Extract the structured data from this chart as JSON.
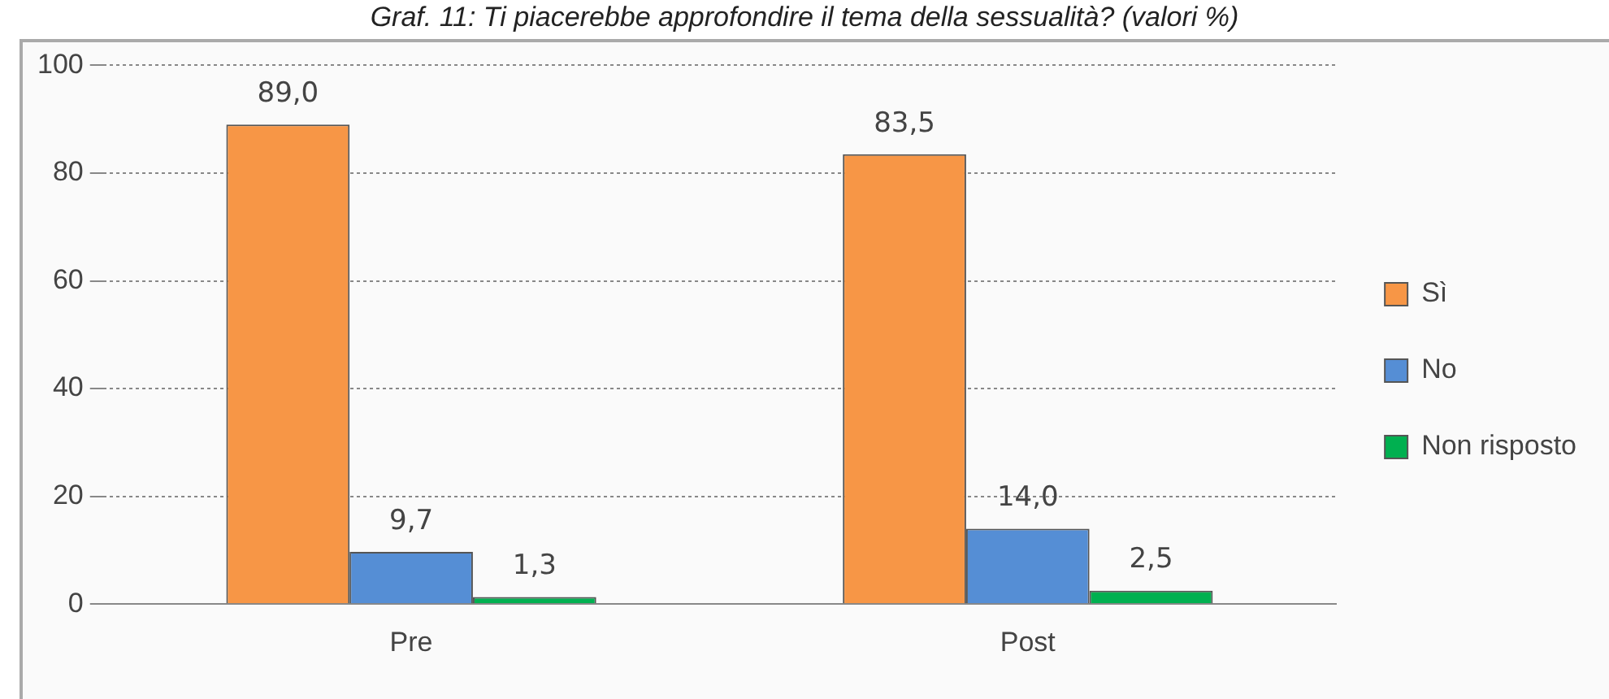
{
  "chart_data": {
    "type": "bar",
    "title": "Graf. 11: Ti piacerebbe approfondire il tema della sessualità? (valori %)",
    "categories": [
      "Pre",
      "Post"
    ],
    "series": [
      {
        "name": "Sì",
        "color": "#f79646",
        "values": [
          89.0,
          83.5
        ],
        "value_labels": [
          "89,0",
          "83,5"
        ]
      },
      {
        "name": "No",
        "color": "#558ed5",
        "values": [
          9.7,
          14.0
        ],
        "value_labels": [
          "9,7",
          "14,0"
        ]
      },
      {
        "name": "Non risposto",
        "color": "#00b050",
        "values": [
          1.3,
          2.5
        ],
        "value_labels": [
          "1,3",
          "2,5"
        ]
      }
    ],
    "ylim": [
      0,
      100
    ],
    "yticks": [
      0,
      20,
      40,
      60,
      80,
      100
    ],
    "grid": "y",
    "legend": "right"
  }
}
